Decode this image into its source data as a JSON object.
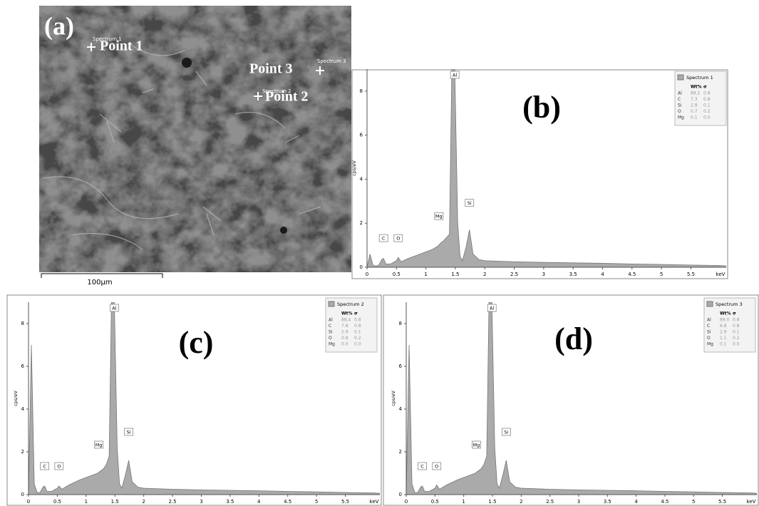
{
  "panel_a": {
    "label": "(a)",
    "points": [
      "Point 1",
      "Point 2",
      "Point 3"
    ],
    "spectra": [
      "Spectrum 1",
      "Spectrum 2",
      "Spectrum 3"
    ],
    "scale_bar": "100µm"
  },
  "chart_data": [
    {
      "type": "area",
      "panel_label": "(b)",
      "y_label": "cps/eV",
      "x_label": "keV",
      "x": [
        0,
        0.05,
        0.1,
        0.15,
        0.2,
        0.25,
        0.28,
        0.32,
        0.4,
        0.5,
        0.53,
        0.58,
        0.7,
        0.9,
        1.1,
        1.2,
        1.25,
        1.3,
        1.35,
        1.4,
        1.44,
        1.49,
        1.54,
        1.58,
        1.62,
        1.68,
        1.74,
        1.8,
        1.9,
        2.0,
        2.5,
        3.0,
        3.5,
        4.0,
        4.5,
        5.0,
        5.5,
        6.0,
        6.1
      ],
      "series": [
        {
          "name": "Spectrum 1",
          "color": "#aaaaaa",
          "values": [
            0,
            0.6,
            0.1,
            0.05,
            0.1,
            0.35,
            0.4,
            0.15,
            0.15,
            0.3,
            0.45,
            0.25,
            0.4,
            0.6,
            0.8,
            0.95,
            1.1,
            1.2,
            1.35,
            1.5,
            9,
            9,
            2.0,
            0.5,
            0.3,
            0.9,
            1.7,
            0.6,
            0.35,
            0.3,
            0.25,
            0.22,
            0.2,
            0.18,
            0.15,
            0.13,
            0.1,
            0.08,
            0.06
          ]
        }
      ],
      "peak_labels": [
        "C",
        "O",
        "Mg",
        "Al",
        "Si"
      ],
      "table": {
        "header": [
          "Wt%",
          "σ"
        ],
        "rows": [
          [
            "Al",
            "89.2",
            "0.8"
          ],
          [
            "C",
            "7.3",
            "0.8"
          ],
          [
            "Si",
            "2.8",
            "0.1"
          ],
          [
            "O",
            "0.7",
            "0.2"
          ],
          [
            "Mg",
            "0.1",
            "0.0"
          ]
        ]
      },
      "xlim": [
        0,
        6.1
      ],
      "xticks": [
        0,
        0.5,
        1,
        1.5,
        2,
        2.5,
        3,
        3.5,
        4,
        4.5,
        5,
        5.5
      ],
      "ylim": [
        0,
        9
      ],
      "yticks": [
        0,
        2,
        4,
        6,
        8
      ]
    },
    {
      "type": "area",
      "panel_label": "(c)",
      "y_label": "cps/eV",
      "x_label": "keV",
      "x": [
        0,
        0.05,
        0.1,
        0.15,
        0.2,
        0.25,
        0.28,
        0.32,
        0.4,
        0.5,
        0.53,
        0.58,
        0.7,
        0.9,
        1.1,
        1.2,
        1.25,
        1.3,
        1.35,
        1.4,
        1.44,
        1.49,
        1.54,
        1.58,
        1.62,
        1.68,
        1.74,
        1.8,
        1.9,
        2.0,
        2.5,
        3.0,
        3.5,
        4.0,
        4.5,
        5.0,
        5.5,
        6.0,
        6.1
      ],
      "series": [
        {
          "name": "Spectrum 2",
          "color": "#aaaaaa",
          "values": [
            0,
            7,
            0.5,
            0.1,
            0.1,
            0.35,
            0.4,
            0.15,
            0.15,
            0.3,
            0.4,
            0.25,
            0.45,
            0.7,
            0.9,
            1.0,
            1.1,
            1.2,
            1.4,
            1.8,
            9,
            9,
            2.2,
            0.5,
            0.3,
            0.9,
            1.6,
            0.6,
            0.35,
            0.3,
            0.25,
            0.22,
            0.2,
            0.18,
            0.15,
            0.13,
            0.1,
            0.08,
            0.06
          ]
        }
      ],
      "peak_labels": [
        "C",
        "O",
        "Mg",
        "Al",
        "Si"
      ],
      "table": {
        "header": [
          "Wt%",
          "σ"
        ],
        "rows": [
          [
            "Al",
            "88.4",
            "0.8"
          ],
          [
            "C",
            "7.8",
            "0.8"
          ],
          [
            "Si",
            "2.9",
            "0.1"
          ],
          [
            "O",
            "0.8",
            "0.2"
          ],
          [
            "Mg",
            "0.0",
            "0.0"
          ]
        ]
      },
      "xlim": [
        0,
        6.1
      ],
      "xticks": [
        0,
        0.5,
        1,
        1.5,
        2,
        2.5,
        3,
        3.5,
        4,
        4.5,
        5,
        5.5
      ],
      "ylim": [
        0,
        9
      ],
      "yticks": [
        0,
        2,
        4,
        6,
        8
      ]
    },
    {
      "type": "area",
      "panel_label": "(d)",
      "y_label": "cps/eV",
      "x_label": "keV",
      "x": [
        0,
        0.05,
        0.1,
        0.15,
        0.2,
        0.25,
        0.28,
        0.32,
        0.4,
        0.5,
        0.53,
        0.58,
        0.7,
        0.9,
        1.1,
        1.2,
        1.25,
        1.3,
        1.35,
        1.4,
        1.44,
        1.49,
        1.54,
        1.58,
        1.62,
        1.68,
        1.74,
        1.8,
        1.9,
        2.0,
        2.5,
        3.0,
        3.5,
        4.0,
        4.5,
        5.0,
        5.5,
        6.0,
        6.1
      ],
      "series": [
        {
          "name": "Spectrum 3",
          "color": "#aaaaaa",
          "values": [
            0,
            7,
            0.5,
            0.1,
            0.1,
            0.35,
            0.4,
            0.15,
            0.15,
            0.3,
            0.45,
            0.25,
            0.45,
            0.7,
            0.9,
            1.0,
            1.1,
            1.2,
            1.4,
            1.8,
            9,
            9,
            2.2,
            0.5,
            0.3,
            0.9,
            1.6,
            0.6,
            0.35,
            0.3,
            0.25,
            0.22,
            0.2,
            0.18,
            0.15,
            0.13,
            0.1,
            0.08,
            0.06
          ]
        }
      ],
      "peak_labels": [
        "C",
        "O",
        "Mg",
        "Al",
        "Si"
      ],
      "table": {
        "header": [
          "Wt%",
          "σ"
        ],
        "rows": [
          [
            "Al",
            "89.0",
            "0.8"
          ],
          [
            "C",
            "6.8",
            "0.8"
          ],
          [
            "Si",
            "2.9",
            "0.1"
          ],
          [
            "O",
            "1.1",
            "0.2"
          ],
          [
            "Mg",
            "0.1",
            "0.0"
          ]
        ]
      },
      "xlim": [
        0,
        6.1
      ],
      "xticks": [
        0,
        0.5,
        1,
        1.5,
        2,
        2.5,
        3,
        3.5,
        4,
        4.5,
        5,
        5.5
      ],
      "ylim": [
        0,
        9
      ],
      "yticks": [
        0,
        2,
        4,
        6,
        8
      ]
    }
  ]
}
